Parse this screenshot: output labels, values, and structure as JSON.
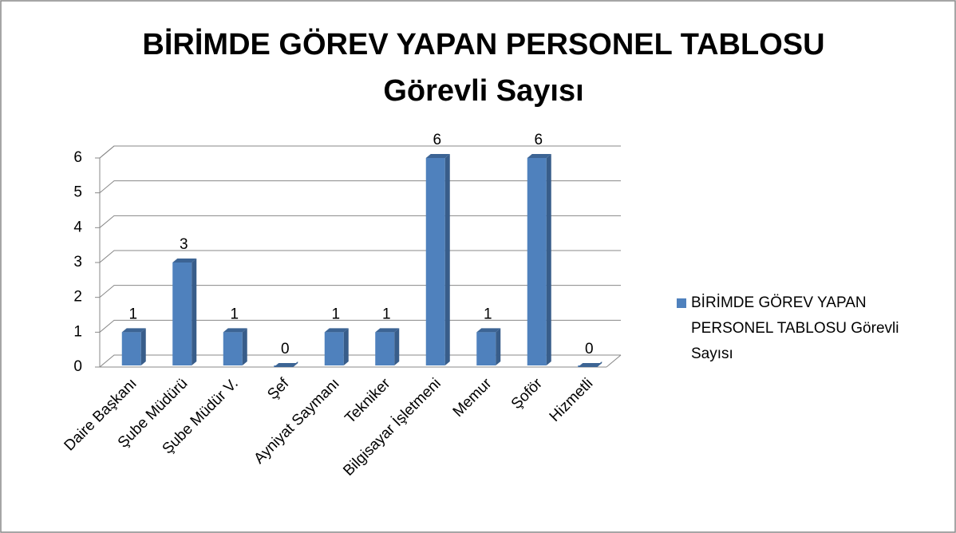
{
  "chart_data": {
    "type": "bar3d",
    "title": [
      "BİRİMDE GÖREV YAPAN PERSONEL TABLOSU",
      "Görevli Sayısı"
    ],
    "categories": [
      "Daire Başkanı",
      "Şube Müdürü",
      "Şube Müdür V.",
      "Şef",
      "Ayniyat Saymanı",
      "Tekniker",
      "Bilgisayar İşletmeni",
      "Memur",
      "Şoför",
      "Hizmetli"
    ],
    "series": [
      {
        "name": "BİRİMDE GÖREV YAPAN PERSONEL TABLOSU Görevli Sayısı",
        "color": "#4f81bd",
        "values": [
          1,
          3,
          1,
          0,
          1,
          1,
          6,
          1,
          6,
          0
        ]
      }
    ],
    "ylim": [
      0,
      6
    ],
    "yticks": [
      0,
      1,
      2,
      3,
      4,
      5,
      6
    ],
    "grid": true,
    "legend": "right"
  }
}
